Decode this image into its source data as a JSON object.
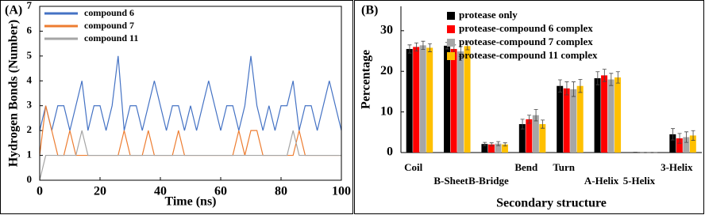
{
  "chart_data": [
    {
      "type": "line",
      "panel_label": "(A)",
      "x_label": "Time (ns)",
      "y_label": "Hydrogen Bonds (Number)",
      "x": [
        0,
        2,
        4,
        6,
        8,
        10,
        12,
        14,
        16,
        18,
        20,
        22,
        24,
        26,
        28,
        30,
        32,
        34,
        36,
        38,
        40,
        42,
        44,
        46,
        48,
        50,
        52,
        54,
        56,
        58,
        60,
        62,
        64,
        66,
        68,
        70,
        72,
        74,
        76,
        78,
        80,
        82,
        84,
        86,
        88,
        90,
        92,
        94,
        96,
        98,
        100
      ],
      "series": [
        {
          "name": "compound 6",
          "color": "#4472c4",
          "values": [
            2,
            3,
            2,
            3,
            3,
            2,
            3,
            4,
            2,
            3,
            3,
            2,
            3,
            5,
            2,
            3,
            3,
            2,
            3,
            4,
            3,
            2,
            3,
            3,
            2,
            3,
            2,
            3,
            4,
            3,
            2,
            3,
            3,
            2,
            3,
            5,
            3,
            2,
            3,
            2,
            3,
            3,
            4,
            2,
            3,
            3,
            2,
            3,
            4,
            3,
            2
          ]
        },
        {
          "name": "compound 7",
          "color": "#ed7d31",
          "values": [
            1,
            3,
            2,
            1,
            1,
            2,
            1,
            1,
            1,
            1,
            1,
            1,
            1,
            1,
            2,
            1,
            1,
            1,
            2,
            1,
            1,
            1,
            1,
            2,
            1,
            1,
            1,
            1,
            1,
            1,
            1,
            1,
            1,
            2,
            1,
            2,
            2,
            1,
            1,
            1,
            1,
            1,
            1,
            2,
            1,
            1,
            1,
            1,
            1,
            1,
            1
          ]
        },
        {
          "name": "compound 11",
          "color": "#a5a5a5",
          "values": [
            0,
            1,
            1,
            1,
            1,
            1,
            1,
            2,
            1,
            1,
            1,
            1,
            1,
            1,
            1,
            1,
            1,
            1,
            1,
            1,
            1,
            1,
            1,
            1,
            1,
            1,
            1,
            1,
            1,
            1,
            1,
            1,
            1,
            1,
            1,
            1,
            1,
            1,
            1,
            1,
            1,
            1,
            2,
            1,
            1,
            1,
            1,
            1,
            1,
            1,
            1
          ]
        }
      ],
      "xlim": [
        0,
        100
      ],
      "xticks": [
        0,
        20,
        40,
        60,
        80,
        100
      ],
      "ylim": [
        0,
        7
      ],
      "yticks": [
        0,
        1,
        2,
        3,
        4,
        5,
        6,
        7
      ],
      "legend": "upper left"
    },
    {
      "type": "bar",
      "panel_label": "(B)",
      "x_label": "Secondary structure",
      "y_label": "Percentage",
      "categories": [
        "Coil",
        "B-Sheet",
        "B-Bridge",
        "Bend",
        "Turn",
        "A-Helix",
        "5-Helix",
        "3-Helix"
      ],
      "series": [
        {
          "name": "protease only",
          "color": "#000000",
          "values": [
            25.5,
            26.3,
            2.1,
            7.0,
            16.4,
            18.3,
            0.1,
            4.5
          ],
          "errors": [
            1.0,
            0.8,
            0.4,
            1.2,
            1.5,
            1.6,
            0,
            1.4
          ]
        },
        {
          "name": "protease-compound 6 complex",
          "color": "#ff0000",
          "values": [
            26.0,
            25.5,
            2.0,
            8.2,
            15.8,
            19.0,
            0,
            3.5
          ],
          "errors": [
            1.0,
            1.0,
            0.4,
            1.0,
            1.6,
            1.5,
            0,
            1.2
          ]
        },
        {
          "name": "protease-compound 7 complex",
          "color": "#a6a6a6",
          "values": [
            26.4,
            24.9,
            2.2,
            9.2,
            15.6,
            18.0,
            0,
            3.8
          ],
          "errors": [
            1.0,
            1.2,
            0.5,
            1.4,
            1.8,
            1.5,
            0,
            1.3
          ]
        },
        {
          "name": "protease-compound 11 complex",
          "color": "#ffc000",
          "values": [
            25.8,
            26.2,
            2.0,
            7.0,
            16.4,
            18.5,
            0,
            4.2
          ],
          "errors": [
            1.0,
            0.9,
            0.4,
            1.0,
            1.6,
            1.4,
            0,
            1.2
          ]
        }
      ],
      "ylim": [
        0,
        36
      ],
      "yticks": [
        0,
        10,
        20,
        30
      ],
      "legend": "upper right"
    }
  ]
}
